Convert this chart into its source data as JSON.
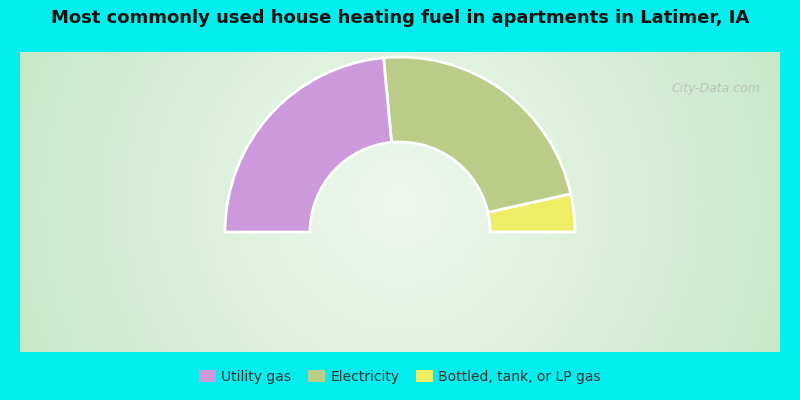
{
  "title": "Most commonly used house heating fuel in apartments in Latimer, IA",
  "title_fontsize": 13,
  "bg_cyan": "#00EEEE",
  "segments": [
    {
      "label": "Utility gas",
      "value": 47,
      "color": "#cc99dd"
    },
    {
      "label": "Electricity",
      "value": 46,
      "color": "#bbcc88"
    },
    {
      "label": "Bottled, tank, or LP gas",
      "value": 7,
      "color": "#eeee66"
    }
  ],
  "legend_fontsize": 10,
  "watermark": "City-Data.com"
}
